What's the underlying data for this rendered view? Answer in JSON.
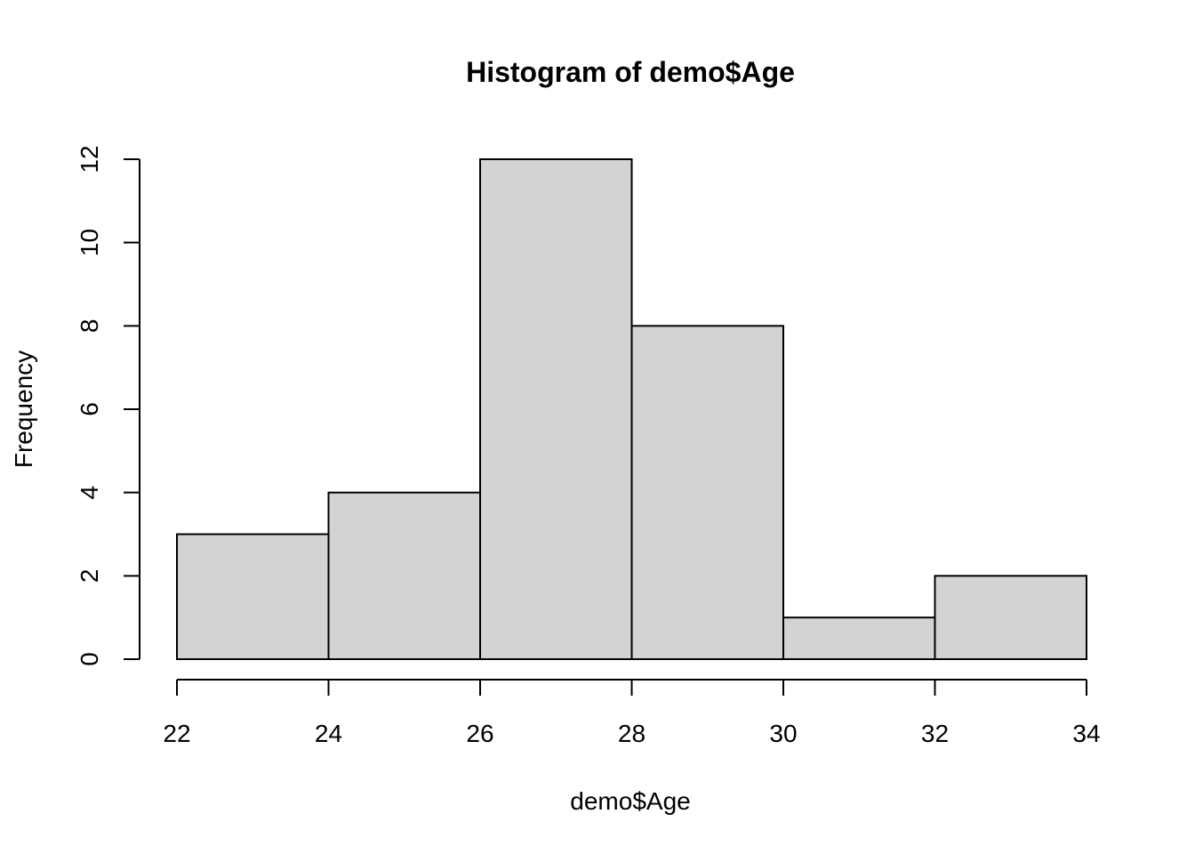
{
  "chart_data": {
    "type": "bar",
    "subtype": "histogram",
    "title": "Histogram of demo$Age",
    "xlabel": "demo$Age",
    "ylabel": "Frequency",
    "bin_edges": [
      22,
      24,
      26,
      28,
      30,
      32,
      34
    ],
    "values": [
      3,
      4,
      12,
      8,
      1,
      2
    ],
    "xlim": [
      22,
      34
    ],
    "ylim": [
      0,
      12
    ],
    "x_ticks": [
      "22",
      "24",
      "26",
      "28",
      "30",
      "32",
      "34"
    ],
    "y_ticks": [
      "0",
      "2",
      "4",
      "6",
      "8",
      "10",
      "12"
    ],
    "grid": false,
    "colors": {
      "bar_fill": "#d3d3d3",
      "bar_stroke": "#000000"
    }
  }
}
